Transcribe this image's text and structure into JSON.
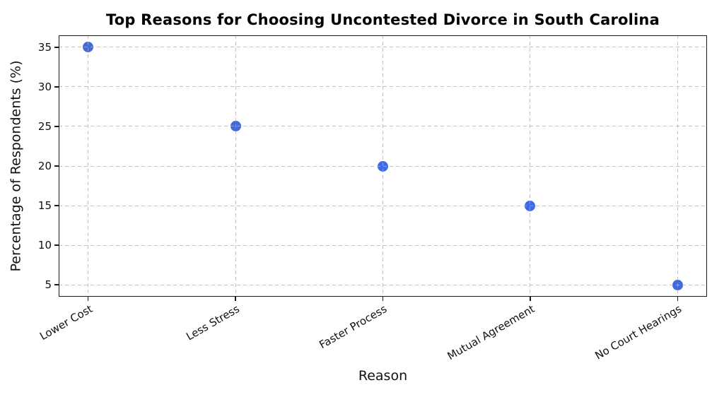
{
  "chart_data": {
    "type": "scatter",
    "title": "Top Reasons for Choosing Uncontested Divorce in South Carolina",
    "xlabel": "Reason",
    "ylabel": "Percentage of Respondents (%)",
    "categories": [
      "Lower Cost",
      "Less Stress",
      "Faster Process",
      "Mutual Agreement",
      "No Court Hearings"
    ],
    "values": [
      35,
      25,
      20,
      15,
      5
    ],
    "yticks": [
      5,
      10,
      15,
      20,
      25,
      30,
      35
    ],
    "ylim": [
      3.5,
      36.5
    ],
    "x_margin_fraction": 0.05,
    "grid": true,
    "grid_linestyle": "dashed",
    "legend": "none",
    "marker_color": "#4169E1",
    "x_tick_rotation_deg": 30
  }
}
